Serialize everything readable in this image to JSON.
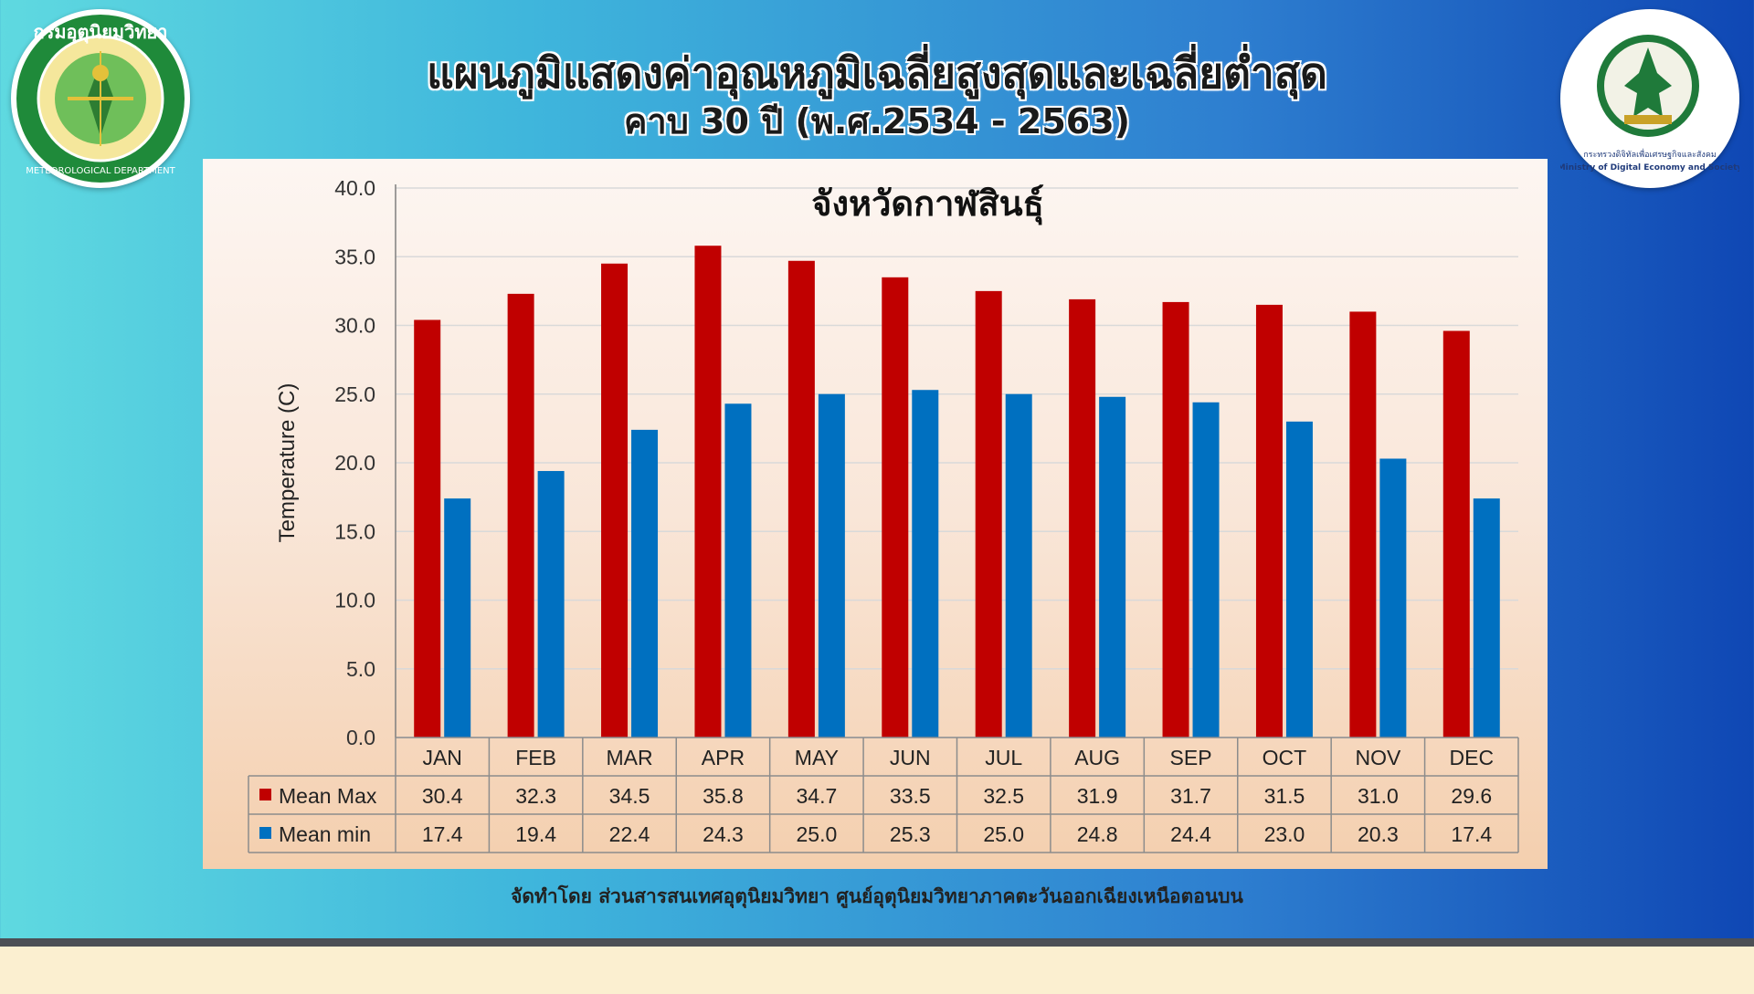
{
  "header": {
    "title_line1": "แผนภูมิแสดงค่าอุณหภูมิเฉลี่ยสูงสุดและเฉลี่ยต่ำสุด",
    "title_line2": "คาบ 30 ปี (พ.ศ.2534 - 2563)"
  },
  "logos": {
    "left": {
      "icon": "meteorological-department-seal",
      "ring_text_top": "กรมอุตุนิยมวิทยา",
      "ring_text_bottom": "METEOROLOGICAL DEPARTMENT"
    },
    "right": {
      "icon": "ministry-digital-economy-seal",
      "ring_text_th": "กระทรวงดิจิทัลเพื่อเศรษฐกิจและสังคม",
      "ring_text_en": "Ministry of Digital Economy and Society"
    }
  },
  "footer": {
    "credit": "จัดทำโดย ส่วนสารสนเทศอุตุนิยมวิทยา ศูนย์อุตุนิยมวิทยาภาคตะวันออกเฉียงเหนือตอนบน"
  },
  "colors": {
    "max": "#c00000",
    "min": "#0070c0"
  },
  "chart_data": {
    "type": "bar",
    "title": "จังหวัดกาฬสินธุ์",
    "ylabel": "Temperature (C)",
    "xlabel": "",
    "ylim": [
      0,
      40
    ],
    "ytick_step": 5,
    "grid": true,
    "categories": [
      "JAN",
      "FEB",
      "MAR",
      "APR",
      "MAY",
      "JUN",
      "JUL",
      "AUG",
      "SEP",
      "OCT",
      "NOV",
      "DEC"
    ],
    "series": [
      {
        "name": "Mean Max",
        "values": [
          30.4,
          32.3,
          34.5,
          35.8,
          34.7,
          33.5,
          32.5,
          31.9,
          31.7,
          31.5,
          31.0,
          29.6
        ]
      },
      {
        "name": "Mean min",
        "values": [
          17.4,
          19.4,
          22.4,
          24.3,
          25.0,
          25.3,
          25.0,
          24.8,
          24.4,
          23.0,
          20.3,
          17.4
        ]
      }
    ],
    "data_table": true
  }
}
